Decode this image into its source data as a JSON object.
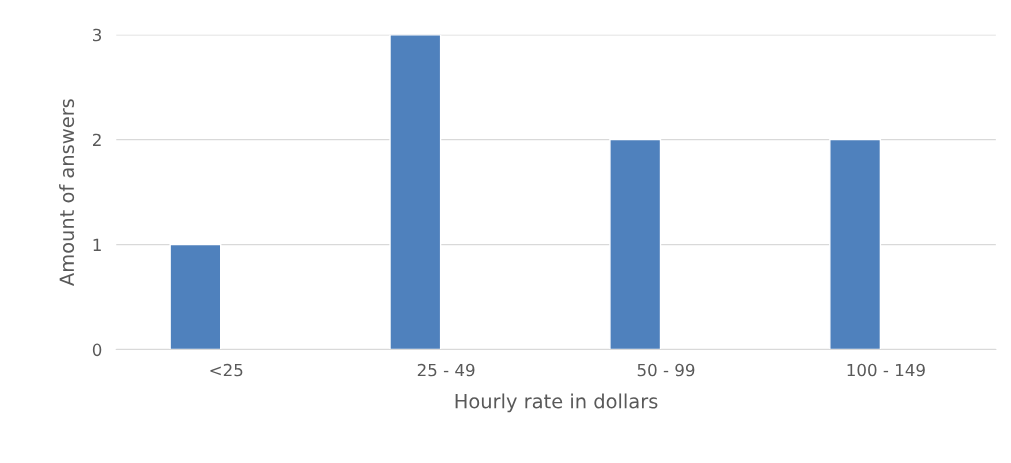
{
  "chart_data": {
    "type": "bar",
    "xlabel": "Hourly rate in dollars",
    "ylabel": "Amount of answers",
    "categories": [
      "<25",
      "25 - 49",
      "50 - 99",
      "100 - 149"
    ],
    "values": [
      1,
      3,
      2,
      2
    ],
    "color": "#4f81bd",
    "ylim": [
      0,
      3
    ],
    "yticks": [
      0,
      1,
      2,
      3
    ],
    "grid": "y",
    "legend": false
  }
}
